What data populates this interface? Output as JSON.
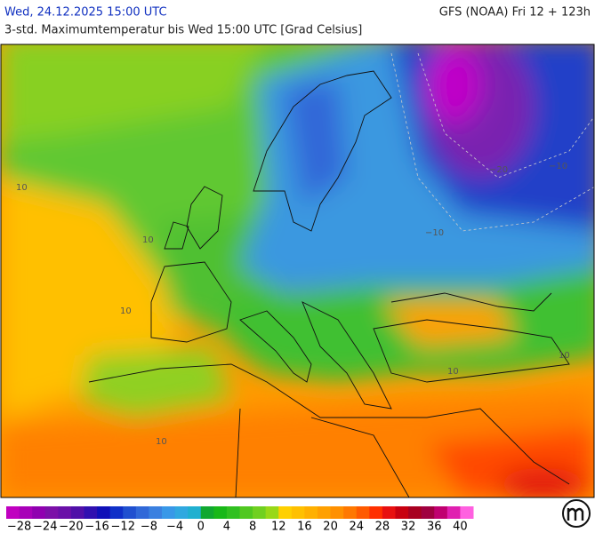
{
  "header": {
    "time": "Wed, 24.12.2025 15:00 UTC",
    "model": "GFS (NOAA) Fri 12 + 123h",
    "subtitle": "3-std. Maximumtemperatur bis Wed 15:00 UTC [Grad Celsius]"
  },
  "map": {
    "contour_labels": [
      "10",
      "10",
      "10",
      "10",
      "10",
      "10",
      "−10",
      "−10",
      "−20"
    ]
  },
  "colorbar": {
    "range": [
      -30,
      42
    ],
    "colors": [
      "#c000c0",
      "#a800b8",
      "#9000b0",
      "#7c10a8",
      "#6a10a8",
      "#5010a8",
      "#3010b0",
      "#1010b8",
      "#1030c8",
      "#2050d0",
      "#3068d8",
      "#3a80e0",
      "#3898e8",
      "#30a8e0",
      "#20b0d0",
      "#10a830",
      "#18b818",
      "#30c020",
      "#50c820",
      "#70d020",
      "#98d818",
      "#ffd000",
      "#ffc000",
      "#ffb000",
      "#ffa000",
      "#ff9000",
      "#ff7800",
      "#ff5a00",
      "#ff3000",
      "#e81010",
      "#c80010",
      "#a80020",
      "#a00040",
      "#c00070",
      "#e020b0",
      "#ff60e0"
    ],
    "ticks": [
      {
        "value": -28,
        "label": "−28"
      },
      {
        "value": -24,
        "label": "−24"
      },
      {
        "value": -20,
        "label": "−20"
      },
      {
        "value": -16,
        "label": "−16"
      },
      {
        "value": -12,
        "label": "−12"
      },
      {
        "value": -8,
        "label": "−8"
      },
      {
        "value": -4,
        "label": "−4"
      },
      0,
      4,
      8,
      12,
      16,
      20,
      24,
      28,
      32,
      36,
      40
    ]
  }
}
